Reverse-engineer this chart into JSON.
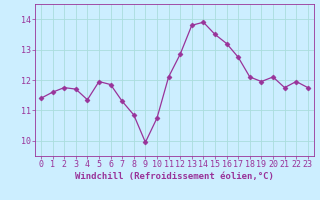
{
  "x": [
    0,
    1,
    2,
    3,
    4,
    5,
    6,
    7,
    8,
    9,
    10,
    11,
    12,
    13,
    14,
    15,
    16,
    17,
    18,
    19,
    20,
    21,
    22,
    23
  ],
  "y": [
    11.4,
    11.6,
    11.75,
    11.7,
    11.35,
    11.95,
    11.85,
    11.3,
    10.85,
    9.95,
    10.75,
    12.1,
    12.85,
    13.8,
    13.9,
    13.5,
    13.2,
    12.75,
    12.1,
    11.95,
    12.1,
    11.75,
    11.95,
    11.75
  ],
  "line_color": "#993399",
  "marker": "D",
  "marker_size": 2.5,
  "bg_color": "#cceeff",
  "grid_color": "#aadddd",
  "tick_color": "#993399",
  "label_color": "#993399",
  "xlabel": "Windchill (Refroidissement éolien,°C)",
  "ylim": [
    9.5,
    14.5
  ],
  "xlim": [
    -0.5,
    23.5
  ],
  "yticks": [
    10,
    11,
    12,
    13,
    14
  ],
  "xticks": [
    0,
    1,
    2,
    3,
    4,
    5,
    6,
    7,
    8,
    9,
    10,
    11,
    12,
    13,
    14,
    15,
    16,
    17,
    18,
    19,
    20,
    21,
    22,
    23
  ],
  "label_fontsize": 6.5,
  "tick_fontsize": 6.0
}
